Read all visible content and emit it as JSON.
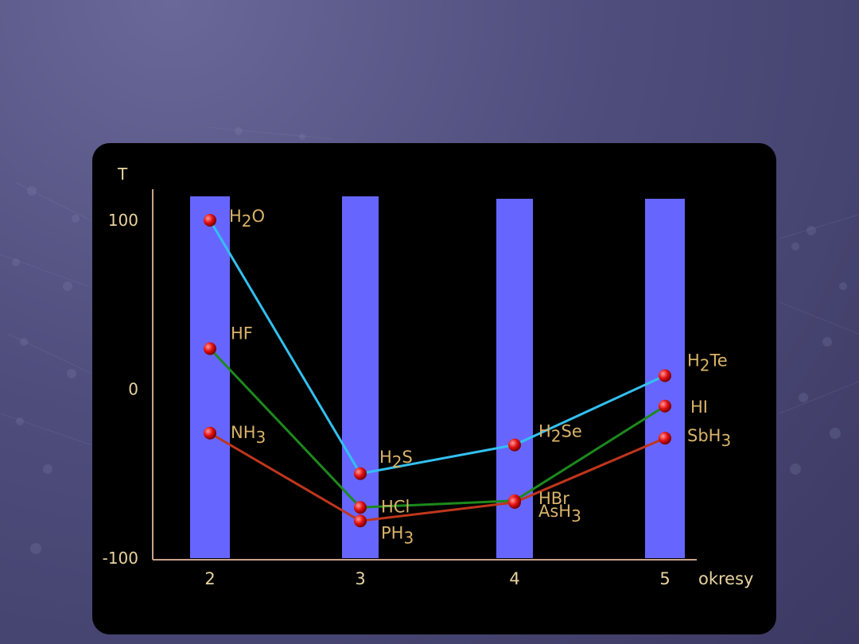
{
  "chart_data": {
    "type": "line",
    "ylabel": "T",
    "xlabel": "okresy",
    "categories": [
      "2",
      "3",
      "4",
      "5"
    ],
    "x": [
      2,
      3,
      4,
      5
    ],
    "yticks": [
      "100",
      "0",
      "-100"
    ],
    "ytick_values": [
      100,
      0,
      -100
    ],
    "ylim": [
      -100,
      100
    ],
    "bar_color": "#6666ff",
    "series": [
      {
        "color": "#33c0f0",
        "values": [
          100,
          -50,
          -33,
          8
        ],
        "point_labels": [
          {
            "base": "H",
            "sub": "2",
            "tail": "O"
          },
          {
            "base": "H",
            "sub": "2",
            "tail": "S"
          },
          {
            "base": "H",
            "sub": "2",
            "tail": "Se"
          },
          {
            "base": "H",
            "sub": "2",
            "tail": "Te"
          }
        ]
      },
      {
        "color": "#1d8a1d",
        "values": [
          24,
          -70,
          -66,
          -10
        ],
        "point_labels": [
          {
            "base": "HF",
            "sub": "",
            "tail": ""
          },
          {
            "base": "HCl",
            "sub": "",
            "tail": ""
          },
          {
            "base": "HBr",
            "sub": "",
            "tail": ""
          },
          {
            "base": "HI",
            "sub": "",
            "tail": ""
          }
        ]
      },
      {
        "color": "#c0361c",
        "values": [
          -26,
          -78,
          -67,
          -29
        ],
        "point_labels": [
          {
            "base": "NH",
            "sub": "3",
            "tail": ""
          },
          {
            "base": "PH",
            "sub": "3",
            "tail": ""
          },
          {
            "base": "AsH",
            "sub": "3",
            "tail": ""
          },
          {
            "base": "SbH",
            "sub": "3",
            "tail": ""
          }
        ]
      }
    ]
  }
}
